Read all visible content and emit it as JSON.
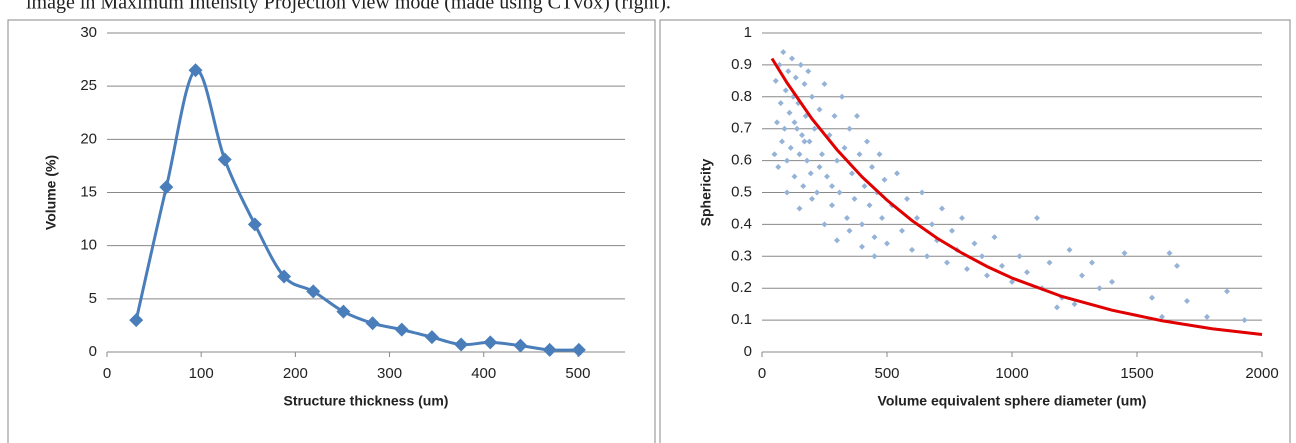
{
  "caption": "image in Maximum Intensity Projection view mode (made using CTvox) (right).",
  "chart_data": [
    {
      "type": "line",
      "smooth": true,
      "marker": "diamond",
      "x_label": "Structure thickness (um)",
      "y_label": "Volume (%)",
      "x": [
        31,
        63,
        94,
        125,
        157,
        188,
        219,
        251,
        282,
        313,
        345,
        376,
        407,
        439,
        470,
        501
      ],
      "series": [
        {
          "color": "#4a7ebb",
          "values": [
            3.0,
            15.5,
            26.5,
            18.1,
            12.0,
            7.1,
            5.7,
            3.8,
            2.7,
            2.1,
            1.4,
            0.7,
            0.9,
            0.6,
            0.2,
            0.2
          ]
        }
      ],
      "xlim": [
        0,
        550
      ],
      "xticks": [
        0,
        100,
        200,
        300,
        400,
        500
      ],
      "ylim": [
        0,
        30
      ],
      "yticks": [
        0,
        5,
        10,
        15,
        20,
        25,
        30
      ],
      "grid": true
    },
    {
      "type": "scatter",
      "x_label": "Volume equivalent sphere diameter (um)",
      "y_label": "Sphericity",
      "series": [
        {
          "type": "scatter",
          "color": "#95b3d7",
          "x": [
            50,
            55,
            60,
            65,
            70,
            75,
            80,
            85,
            90,
            95,
            100,
            105,
            110,
            115,
            120,
            125,
            130,
            135,
            140,
            145,
            150,
            155,
            160,
            165,
            170,
            175,
            180,
            185,
            190,
            195,
            200,
            210,
            220,
            230,
            240,
            250,
            260,
            270,
            280,
            290,
            300,
            310,
            320,
            330,
            340,
            350,
            360,
            370,
            380,
            390,
            400,
            410,
            420,
            430,
            440,
            450,
            460,
            470,
            480,
            490,
            500,
            520,
            540,
            560,
            580,
            600,
            620,
            640,
            660,
            680,
            700,
            720,
            740,
            760,
            780,
            800,
            820,
            850,
            880,
            900,
            930,
            960,
            1000,
            1030,
            1060,
            1100,
            1120,
            1150,
            1200,
            1230,
            1280,
            1320,
            1350,
            1450,
            1560,
            1600,
            1630,
            1660,
            1700,
            1780,
            1860,
            1930,
            1250,
            1180,
            1400,
            100,
            150,
            250,
            300,
            200,
            350,
            400,
            450,
            130,
            170,
            230,
            280
          ],
          "values": [
            0.62,
            0.85,
            0.72,
            0.58,
            0.9,
            0.78,
            0.66,
            0.94,
            0.7,
            0.82,
            0.6,
            0.88,
            0.75,
            0.64,
            0.92,
            0.8,
            0.55,
            0.86,
            0.7,
            0.78,
            0.62,
            0.9,
            0.68,
            0.52,
            0.84,
            0.74,
            0.6,
            0.88,
            0.66,
            0.56,
            0.8,
            0.7,
            0.5,
            0.76,
            0.62,
            0.84,
            0.55,
            0.68,
            0.46,
            0.74,
            0.6,
            0.5,
            0.8,
            0.64,
            0.42,
            0.7,
            0.56,
            0.48,
            0.74,
            0.62,
            0.4,
            0.52,
            0.66,
            0.46,
            0.58,
            0.36,
            0.5,
            0.62,
            0.42,
            0.54,
            0.34,
            0.46,
            0.56,
            0.38,
            0.48,
            0.32,
            0.42,
            0.5,
            0.3,
            0.4,
            0.35,
            0.45,
            0.28,
            0.38,
            0.32,
            0.42,
            0.26,
            0.34,
            0.3,
            0.24,
            0.36,
            0.27,
            0.22,
            0.3,
            0.25,
            0.42,
            0.2,
            0.28,
            0.17,
            0.32,
            0.24,
            0.28,
            0.2,
            0.31,
            0.17,
            0.11,
            0.31,
            0.27,
            0.16,
            0.11,
            0.19,
            0.1,
            0.15,
            0.14,
            0.22,
            0.5,
            0.45,
            0.4,
            0.35,
            0.48,
            0.38,
            0.33,
            0.3,
            0.72,
            0.66,
            0.58,
            0.52
          ]
        },
        {
          "type": "line",
          "color": "#e00000",
          "x": [
            40,
            100,
            200,
            300,
            400,
            500,
            600,
            700,
            800,
            900,
            1000,
            1200,
            1400,
            1600,
            1800,
            2000
          ],
          "values": [
            0.92,
            0.844,
            0.731,
            0.634,
            0.549,
            0.476,
            0.412,
            0.357,
            0.31,
            0.268,
            0.232,
            0.174,
            0.131,
            0.098,
            0.073,
            0.055
          ]
        }
      ],
      "xlim": [
        0,
        2000
      ],
      "xticks": [
        0,
        500,
        1000,
        1500,
        2000
      ],
      "ylim": [
        0,
        1
      ],
      "yticks": [
        0,
        0.1,
        0.2,
        0.3,
        0.4,
        0.5,
        0.6,
        0.7,
        0.8,
        0.9,
        1
      ],
      "grid": true
    }
  ]
}
